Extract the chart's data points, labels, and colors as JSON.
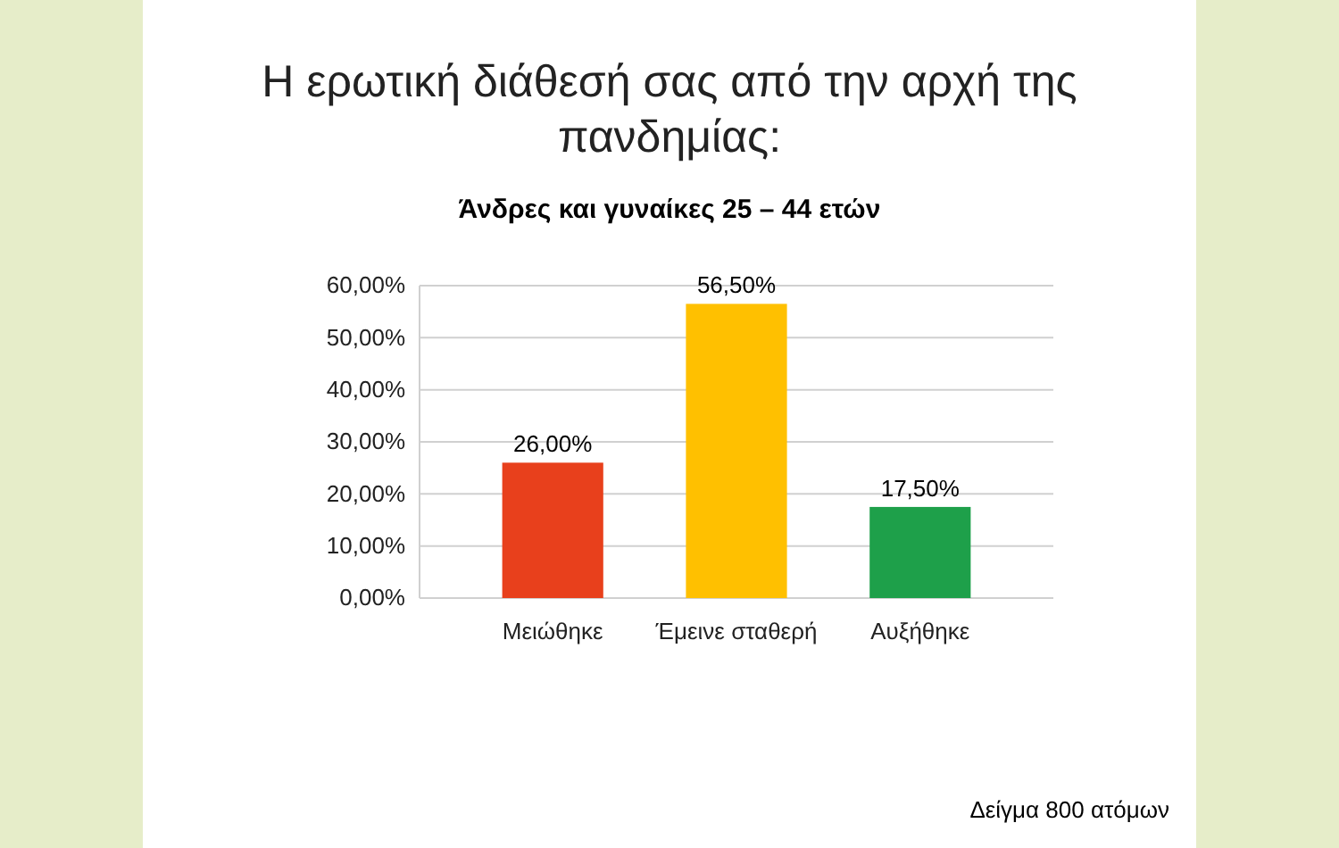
{
  "chart_data": {
    "type": "bar",
    "title": "Η ερωτική διάθεσή σας από την αρχή της πανδημίας:",
    "subtitle": "Άνδρες και γυναίκες 25 – 44 ετών",
    "categories": [
      "Μειώθηκε",
      "Έμεινε σταθερή",
      "Αυξήθηκε"
    ],
    "values": [
      26,
      56.5,
      17.5
    ],
    "colors": [
      "#e8401c",
      "#ffc000",
      "#1ea04a"
    ],
    "value_labels": [
      "26,00%",
      "56,50%",
      "17,50%"
    ],
    "ylim": [
      0,
      60
    ],
    "yticks": [
      {
        "value": 0,
        "label": "0,00%"
      },
      {
        "value": 10,
        "label": "10,00%"
      },
      {
        "value": 20,
        "label": "20,00%"
      },
      {
        "value": 30,
        "label": "30,00%"
      },
      {
        "value": 40,
        "label": "40,00%"
      },
      {
        "value": 50,
        "label": "50,00%"
      },
      {
        "value": 60,
        "label": "60,00%"
      }
    ],
    "grid": "y",
    "annotations": [
      "Δείγμα 800 ατόμων"
    ]
  }
}
